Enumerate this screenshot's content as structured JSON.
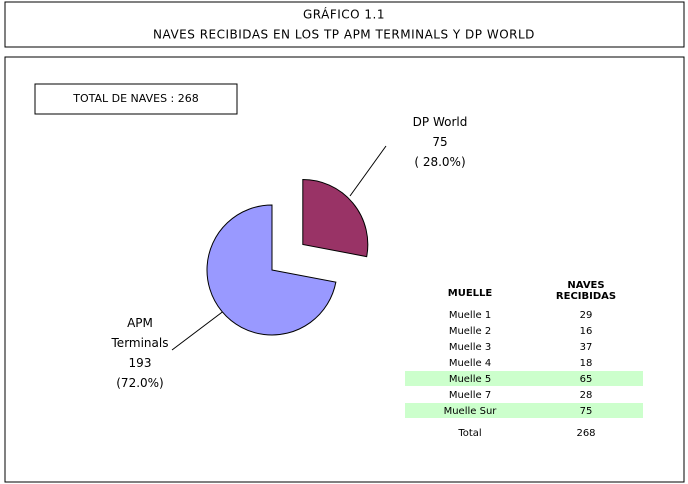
{
  "chart_data": {
    "type": "pie",
    "title": "GRÁFICO 1.1",
    "subtitle": "NAVES RECIBIDAS EN LOS TP APM TERMINALS Y DP WORLD",
    "annotation": "TOTAL DE NAVES : 268",
    "categories": [
      "APM Terminals",
      "DP World"
    ],
    "values": [
      193,
      75
    ],
    "percentages": [
      72.0,
      28.0
    ],
    "percent_labels": [
      "(72.0%)",
      "( 28.0%)"
    ],
    "colors": [
      "#9999ff",
      "#993366"
    ],
    "exploded": [
      false,
      true
    ]
  },
  "table": {
    "header": [
      "MUELLE",
      [
        "NAVES",
        "RECIBIDAS"
      ]
    ],
    "rows": [
      [
        "Muelle 1",
        "29"
      ],
      [
        "Muelle 2",
        "16"
      ],
      [
        "Muelle 3",
        "37"
      ],
      [
        "Muelle 4",
        "18"
      ],
      [
        "Muelle 5",
        "65"
      ],
      [
        "Muelle 7",
        "28"
      ],
      [
        "Muelle Sur",
        "75"
      ],
      [
        "Total",
        "268"
      ]
    ],
    "highlight_rows": [
      4,
      6
    ],
    "highlight_color": "#ccffcc"
  }
}
